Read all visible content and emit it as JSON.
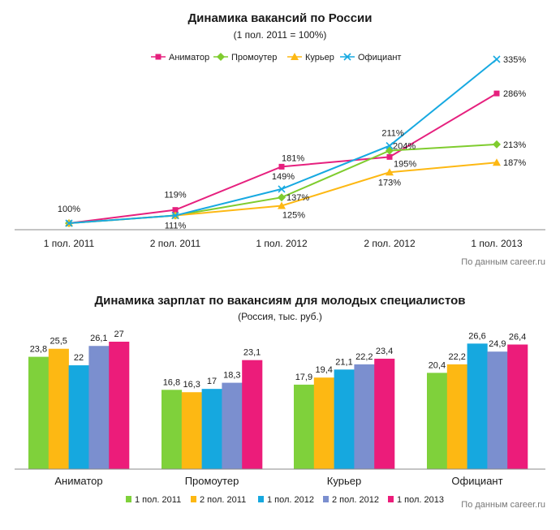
{
  "source_note": "По данным career.ru",
  "chart_data": [
    {
      "type": "line",
      "title": "Динамика вакансий по России",
      "subtitle": "(1 пол. 2011 = 100%)",
      "xlabel": "",
      "ylabel": "",
      "categories": [
        "1 пол. 2011",
        "2 пол. 2011",
        "1 пол. 2012",
        "2 пол. 2012",
        "1 пол. 2013"
      ],
      "ylim": [
        90,
        345
      ],
      "grid": false,
      "legend": "top",
      "series": [
        {
          "name": "Аниматор",
          "values": [
            100,
            119,
            181,
            195,
            286
          ],
          "color": "#E6207E",
          "marker": "square"
        },
        {
          "name": "Промоутер",
          "values": [
            100,
            111,
            137,
            204,
            213
          ],
          "color": "#7FCC2E",
          "marker": "diamond"
        },
        {
          "name": "Курьер",
          "values": [
            100,
            111,
            125,
            173,
            187
          ],
          "color": "#FDB813",
          "marker": "triangle"
        },
        {
          "name": "Официант",
          "values": [
            100,
            111,
            149,
            211,
            335
          ],
          "color": "#17A9E1",
          "marker": "x"
        }
      ],
      "point_labels": [
        {
          "series": "Промоутер",
          "index": 0,
          "text": "100%"
        },
        {
          "series": "Аниматор",
          "index": 1,
          "text": "119%"
        },
        {
          "series": "Промоутер",
          "index": 1,
          "text": "111%"
        },
        {
          "series": "Аниматор",
          "index": 2,
          "text": "181%"
        },
        {
          "series": "Официант",
          "index": 2,
          "text": "149%"
        },
        {
          "series": "Промоутер",
          "index": 2,
          "text": "137%"
        },
        {
          "series": "Курьер",
          "index": 2,
          "text": "125%"
        },
        {
          "series": "Официант",
          "index": 3,
          "text": "211%"
        },
        {
          "series": "Промоутер",
          "index": 3,
          "text": "204%"
        },
        {
          "series": "Аниматор",
          "index": 3,
          "text": "195%"
        },
        {
          "series": "Курьер",
          "index": 3,
          "text": "173%"
        },
        {
          "series": "Официант",
          "index": 4,
          "text": "335%"
        },
        {
          "series": "Аниматор",
          "index": 4,
          "text": "286%"
        },
        {
          "series": "Промоутер",
          "index": 4,
          "text": "213%"
        },
        {
          "series": "Курьер",
          "index": 4,
          "text": "187%"
        }
      ]
    },
    {
      "type": "bar",
      "title": "Динамика зарплат по вакансиям для молодых специалистов",
      "subtitle": "(Россия, тыс. руб.)",
      "xlabel": "",
      "ylabel": "",
      "categories": [
        "Аниматор",
        "Промоутер",
        "Курьер",
        "Официант"
      ],
      "ylim": [
        0,
        30
      ],
      "grid": false,
      "legend": "bottom",
      "series": [
        {
          "name": "1 пол. 2011",
          "values": [
            23.8,
            16.8,
            17.9,
            20.4
          ],
          "labels": [
            "23,8",
            "16,8",
            "17,9",
            "20,4"
          ],
          "color": "#7FD13B"
        },
        {
          "name": "2 пол. 2011",
          "values": [
            25.5,
            16.3,
            19.4,
            22.2
          ],
          "labels": [
            "25,5",
            "16,3",
            "19,4",
            "22,2"
          ],
          "color": "#FDB813"
        },
        {
          "name": "1 пол. 2012",
          "values": [
            22,
            17,
            21.1,
            26.6
          ],
          "labels": [
            "22",
            "17",
            "21,1",
            "26,6"
          ],
          "color": "#16A8DF"
        },
        {
          "name": "2 пол. 2012",
          "values": [
            26.1,
            18.3,
            22.2,
            24.9
          ],
          "labels": [
            "26,1",
            "18,3",
            "22,2",
            "24,9"
          ],
          "color": "#7B8FCF"
        },
        {
          "name": "1 пол. 2013",
          "values": [
            27,
            23.1,
            23.4,
            26.4
          ],
          "labels": [
            "27",
            "23,1",
            "23,4",
            "26,4"
          ],
          "color": "#EC1C7A"
        }
      ]
    }
  ]
}
